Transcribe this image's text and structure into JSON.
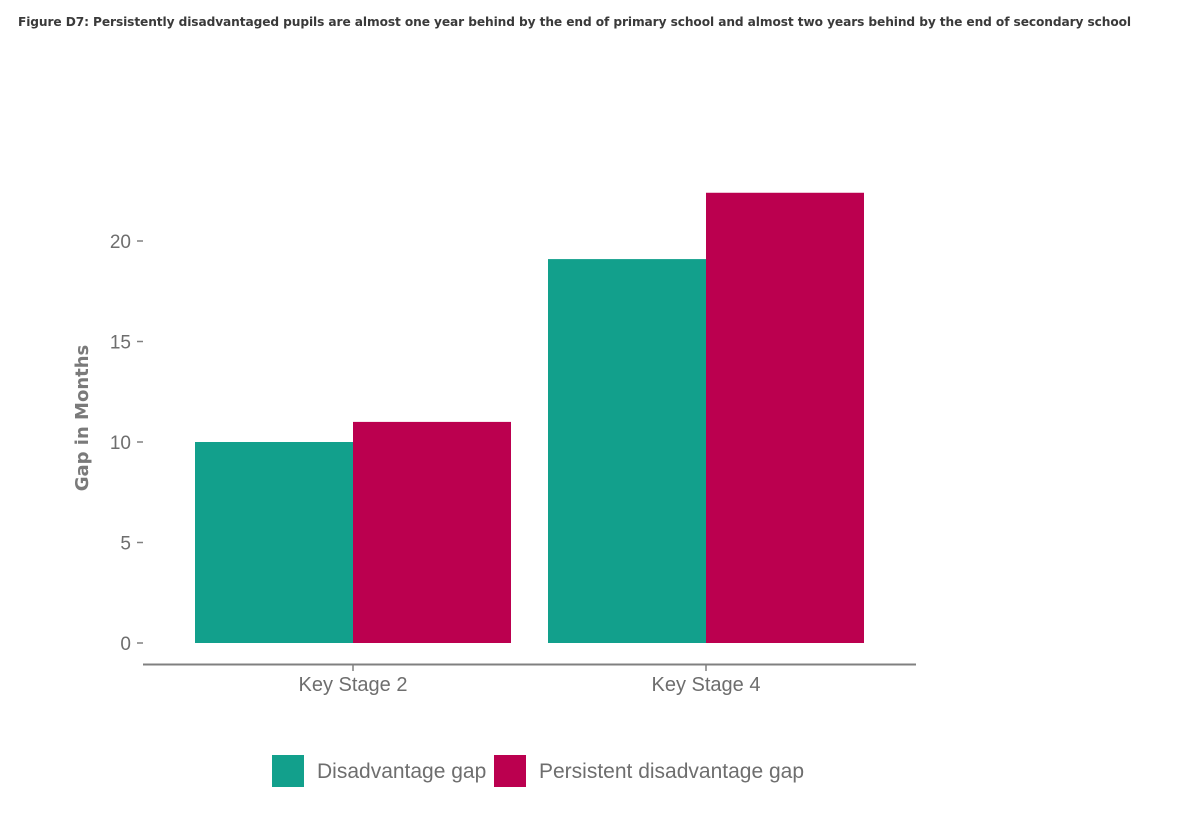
{
  "figure": {
    "title": "Figure D7: Persistently disadvantaged pupils are almost one year behind by the end of primary school and almost two years behind by the end of secondary school"
  },
  "chart_data": {
    "type": "bar",
    "title": "Figure D7: Persistently disadvantaged pupils are almost one year behind by the end of primary school and almost two years behind by the end of secondary school",
    "xlabel": "",
    "ylabel": "Gap in Months",
    "categories": [
      "Key Stage 2",
      "Key Stage 4"
    ],
    "series": [
      {
        "name": "Disadvantage gap",
        "values": [
          10.0,
          19.1
        ],
        "color": "#12a08c"
      },
      {
        "name": "Persistent disadvantage gap",
        "values": [
          11.0,
          22.4
        ],
        "color": "#bb004f"
      }
    ],
    "yticks": [
      0,
      5,
      10,
      15,
      20
    ],
    "ylim": [
      0,
      23.5
    ],
    "grid": false,
    "legend": "bottom-center",
    "axis_color": "#808080"
  }
}
